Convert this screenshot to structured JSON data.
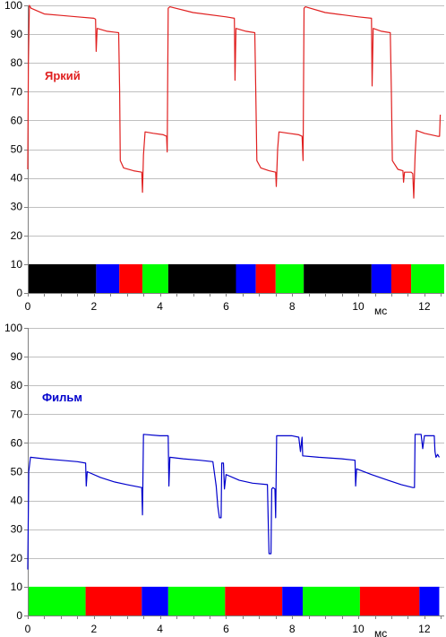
{
  "chart_data": [
    {
      "type": "line",
      "title": "",
      "xlabel": "",
      "ylabel": "",
      "x_unit_label": "мс",
      "xlim": [
        0,
        12.6
      ],
      "ylim": [
        0,
        100
      ],
      "xticks": [
        0,
        2,
        4,
        6,
        8,
        10,
        12
      ],
      "yticks": [
        0,
        10,
        20,
        30,
        40,
        50,
        60,
        70,
        80,
        90,
        100
      ],
      "grid": "horizontal",
      "legend": "none",
      "series": [
        {
          "name": "Яркий",
          "color": "#e02020",
          "points": [
            [
              0.0,
              43
            ],
            [
              0.02,
              80
            ],
            [
              0.05,
              100
            ],
            [
              0.1,
              99
            ],
            [
              0.5,
              97
            ],
            [
              1.0,
              96.5
            ],
            [
              1.5,
              96
            ],
            [
              2.0,
              95.5
            ],
            [
              2.05,
              95.2
            ],
            [
              2.07,
              84
            ],
            [
              2.1,
              92
            ],
            [
              2.4,
              91
            ],
            [
              2.75,
              90.5
            ],
            [
              2.78,
              70
            ],
            [
              2.8,
              46
            ],
            [
              2.9,
              43.5
            ],
            [
              3.2,
              42.5
            ],
            [
              3.45,
              42
            ],
            [
              3.47,
              35
            ],
            [
              3.5,
              48
            ],
            [
              3.55,
              56
            ],
            [
              3.8,
              55.5
            ],
            [
              4.1,
              55
            ],
            [
              4.2,
              54.5
            ],
            [
              4.22,
              49
            ],
            [
              4.25,
              99
            ],
            [
              4.3,
              99.5
            ],
            [
              5.0,
              97.5
            ],
            [
              6.0,
              96
            ],
            [
              6.25,
              95.5
            ],
            [
              6.27,
              74
            ],
            [
              6.3,
              92
            ],
            [
              6.6,
              91
            ],
            [
              6.87,
              90.5
            ],
            [
              6.9,
              70
            ],
            [
              6.93,
              46
            ],
            [
              7.05,
              43.5
            ],
            [
              7.3,
              42.5
            ],
            [
              7.5,
              42
            ],
            [
              7.52,
              37
            ],
            [
              7.56,
              50
            ],
            [
              7.6,
              56
            ],
            [
              7.9,
              55.5
            ],
            [
              8.2,
              55
            ],
            [
              8.3,
              54.5
            ],
            [
              8.33,
              46
            ],
            [
              8.36,
              99
            ],
            [
              8.4,
              99.5
            ],
            [
              9.0,
              97.5
            ],
            [
              10.0,
              96
            ],
            [
              10.4,
              95.5
            ],
            [
              10.42,
              72
            ],
            [
              10.45,
              92
            ],
            [
              10.7,
              91
            ],
            [
              10.97,
              90.5
            ],
            [
              11.0,
              70
            ],
            [
              11.03,
              46
            ],
            [
              11.2,
              43
            ],
            [
              11.35,
              42.5
            ],
            [
              11.37,
              38.5
            ],
            [
              11.4,
              42
            ],
            [
              11.6,
              42
            ],
            [
              11.65,
              41.5
            ],
            [
              11.68,
              33
            ],
            [
              11.72,
              48
            ],
            [
              11.76,
              56.5
            ],
            [
              12.0,
              55.5
            ],
            [
              12.4,
              54.5
            ],
            [
              12.46,
              54.5
            ],
            [
              12.48,
              62
            ]
          ]
        }
      ],
      "color_bar": [
        {
          "start": 0.0,
          "end": 2.07,
          "color": "#000000"
        },
        {
          "start": 2.07,
          "end": 2.77,
          "color": "#0000ff"
        },
        {
          "start": 2.77,
          "end": 3.47,
          "color": "#ff0000"
        },
        {
          "start": 3.47,
          "end": 4.25,
          "color": "#00ff00"
        },
        {
          "start": 4.25,
          "end": 6.3,
          "color": "#000000"
        },
        {
          "start": 6.3,
          "end": 6.9,
          "color": "#0000ff"
        },
        {
          "start": 6.9,
          "end": 7.5,
          "color": "#ff0000"
        },
        {
          "start": 7.5,
          "end": 8.35,
          "color": "#00ff00"
        },
        {
          "start": 8.35,
          "end": 10.4,
          "color": "#000000"
        },
        {
          "start": 10.4,
          "end": 11.0,
          "color": "#0000ff"
        },
        {
          "start": 11.0,
          "end": 11.6,
          "color": "#ff0000"
        },
        {
          "start": 11.6,
          "end": 12.6,
          "color": "#00ff00"
        }
      ]
    },
    {
      "type": "line",
      "title": "",
      "xlabel": "",
      "ylabel": "",
      "x_unit_label": "мс",
      "xlim": [
        0,
        12.6
      ],
      "ylim": [
        0,
        100
      ],
      "xticks": [
        0,
        2,
        4,
        6,
        8,
        10,
        12
      ],
      "yticks": [
        0,
        10,
        20,
        30,
        40,
        50,
        60,
        70,
        80,
        90,
        100
      ],
      "grid": "horizontal",
      "legend": "none",
      "series": [
        {
          "name": "Фильм",
          "color": "#0000cc",
          "points": [
            [
              0.0,
              16
            ],
            [
              0.03,
              50
            ],
            [
              0.08,
              55
            ],
            [
              0.5,
              54.5
            ],
            [
              1.0,
              54
            ],
            [
              1.5,
              53.5
            ],
            [
              1.75,
              53
            ],
            [
              1.77,
              45
            ],
            [
              1.8,
              50
            ],
            [
              2.2,
              48
            ],
            [
              2.6,
              46.5
            ],
            [
              3.0,
              45.5
            ],
            [
              3.45,
              44.5
            ],
            [
              3.47,
              35
            ],
            [
              3.5,
              63
            ],
            [
              4.0,
              62.5
            ],
            [
              4.25,
              62.5
            ],
            [
              4.27,
              45
            ],
            [
              4.3,
              55
            ],
            [
              4.7,
              54.5
            ],
            [
              5.2,
              54
            ],
            [
              5.6,
              53.5
            ],
            [
              5.7,
              45
            ],
            [
              5.75,
              38
            ],
            [
              5.8,
              34
            ],
            [
              5.85,
              34
            ],
            [
              5.87,
              53
            ],
            [
              5.92,
              53
            ],
            [
              5.95,
              44
            ],
            [
              6.0,
              49
            ],
            [
              6.4,
              47
            ],
            [
              6.8,
              46
            ],
            [
              7.25,
              45.5
            ],
            [
              7.28,
              30
            ],
            [
              7.3,
              21.5
            ],
            [
              7.36,
              21.5
            ],
            [
              7.38,
              44
            ],
            [
              7.42,
              44.5
            ],
            [
              7.48,
              44
            ],
            [
              7.5,
              34
            ],
            [
              7.53,
              62.5
            ],
            [
              8.0,
              62.5
            ],
            [
              8.2,
              62
            ],
            [
              8.25,
              57
            ],
            [
              8.3,
              62
            ],
            [
              8.32,
              55.5
            ],
            [
              8.8,
              55
            ],
            [
              9.5,
              54.5
            ],
            [
              9.9,
              54
            ],
            [
              9.92,
              45
            ],
            [
              9.95,
              51
            ],
            [
              10.4,
              49
            ],
            [
              10.9,
              47
            ],
            [
              11.3,
              45.5
            ],
            [
              11.65,
              44.5
            ],
            [
              11.7,
              44.5
            ],
            [
              11.72,
              63
            ],
            [
              11.9,
              63
            ],
            [
              11.95,
              58
            ],
            [
              12.0,
              62.5
            ],
            [
              12.3,
              62.5
            ],
            [
              12.32,
              57
            ],
            [
              12.35,
              55
            ],
            [
              12.4,
              56
            ],
            [
              12.45,
              55
            ]
          ]
        }
      ],
      "color_bar": [
        {
          "start": 0.0,
          "end": 1.75,
          "color": "#00ff00"
        },
        {
          "start": 1.75,
          "end": 3.45,
          "color": "#ff0000"
        },
        {
          "start": 3.45,
          "end": 4.25,
          "color": "#0000ff"
        },
        {
          "start": 4.25,
          "end": 5.97,
          "color": "#00ff00"
        },
        {
          "start": 5.97,
          "end": 7.7,
          "color": "#ff0000"
        },
        {
          "start": 7.7,
          "end": 8.32,
          "color": "#0000ff"
        },
        {
          "start": 8.32,
          "end": 10.05,
          "color": "#00ff00"
        },
        {
          "start": 10.05,
          "end": 11.85,
          "color": "#ff0000"
        },
        {
          "start": 11.85,
          "end": 12.45,
          "color": "#0000ff"
        }
      ]
    }
  ]
}
